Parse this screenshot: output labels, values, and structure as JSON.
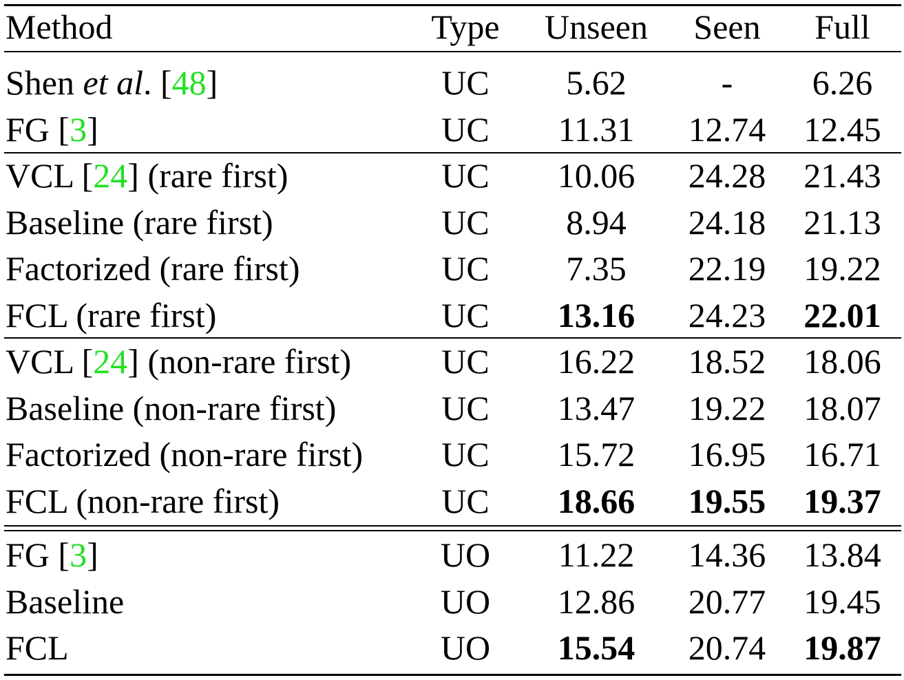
{
  "header": {
    "method": "Method",
    "type": "Type",
    "unseen": "Unseen",
    "seen": "Seen",
    "full": "Full"
  },
  "colors": {
    "citation": "#22e022"
  },
  "groups": [
    [
      {
        "method_pre": "Shen ",
        "method_it": "et al",
        "method_mid": ". [",
        "cite": "48",
        "method_post": "]",
        "type": "UC",
        "unseen": "5.62",
        "seen": "-",
        "full": "6.26",
        "bold": []
      },
      {
        "method_pre": "FG [",
        "method_it": "",
        "method_mid": "",
        "cite": "3",
        "method_post": "]",
        "type": "UC",
        "unseen": "11.31",
        "seen": "12.74",
        "full": "12.45",
        "bold": []
      }
    ],
    [
      {
        "method_pre": "VCL [",
        "method_it": "",
        "method_mid": "",
        "cite": "24",
        "method_post": "] (rare first)",
        "type": "UC",
        "unseen": "10.06",
        "seen": "24.28",
        "full": "21.43",
        "bold": []
      },
      {
        "method_pre": "Baseline (rare first)",
        "method_it": "",
        "method_mid": "",
        "cite": "",
        "method_post": "",
        "type": "UC",
        "unseen": "8.94",
        "seen": "24.18",
        "full": "21.13",
        "bold": []
      },
      {
        "method_pre": "Factorized (rare first)",
        "method_it": "",
        "method_mid": "",
        "cite": "",
        "method_post": "",
        "type": "UC",
        "unseen": "7.35",
        "seen": "22.19",
        "full": "19.22",
        "bold": []
      },
      {
        "method_pre": "FCL (rare first)",
        "method_it": "",
        "method_mid": "",
        "cite": "",
        "method_post": "",
        "type": "UC",
        "unseen": "13.16",
        "seen": "24.23",
        "full": "22.01",
        "bold": [
          "unseen",
          "full"
        ]
      }
    ],
    [
      {
        "method_pre": "VCL [",
        "method_it": "",
        "method_mid": "",
        "cite": "24",
        "method_post": "] (non-rare first)",
        "type": "UC",
        "unseen": "16.22",
        "seen": "18.52",
        "full": "18.06",
        "bold": []
      },
      {
        "method_pre": "Baseline (non-rare first)",
        "method_it": "",
        "method_mid": "",
        "cite": "",
        "method_post": "",
        "type": "UC",
        "unseen": "13.47",
        "seen": "19.22",
        "full": "18.07",
        "bold": []
      },
      {
        "method_pre": "Factorized (non-rare first)",
        "method_it": "",
        "method_mid": "",
        "cite": "",
        "method_post": "",
        "type": "UC",
        "unseen": "15.72",
        "seen": "16.95",
        "full": "16.71",
        "bold": []
      },
      {
        "method_pre": "FCL (non-rare first)",
        "method_it": "",
        "method_mid": "",
        "cite": "",
        "method_post": "",
        "type": "UC",
        "unseen": "18.66",
        "seen": "19.55",
        "full": "19.37",
        "bold": [
          "unseen",
          "seen",
          "full"
        ]
      }
    ],
    [
      {
        "method_pre": "FG [",
        "method_it": "",
        "method_mid": "",
        "cite": "3",
        "method_post": "]",
        "type": "UO",
        "unseen": "11.22",
        "seen": "14.36",
        "full": "13.84",
        "bold": []
      },
      {
        "method_pre": "Baseline",
        "method_it": "",
        "method_mid": "",
        "cite": "",
        "method_post": "",
        "type": "UO",
        "unseen": "12.86",
        "seen": "20.77",
        "full": "19.45",
        "bold": []
      },
      {
        "method_pre": "FCL",
        "method_it": "",
        "method_mid": "",
        "cite": "",
        "method_post": "",
        "type": "UO",
        "unseen": "15.54",
        "seen": "20.74",
        "full": "19.87",
        "bold": [
          "unseen",
          "full"
        ]
      }
    ]
  ]
}
